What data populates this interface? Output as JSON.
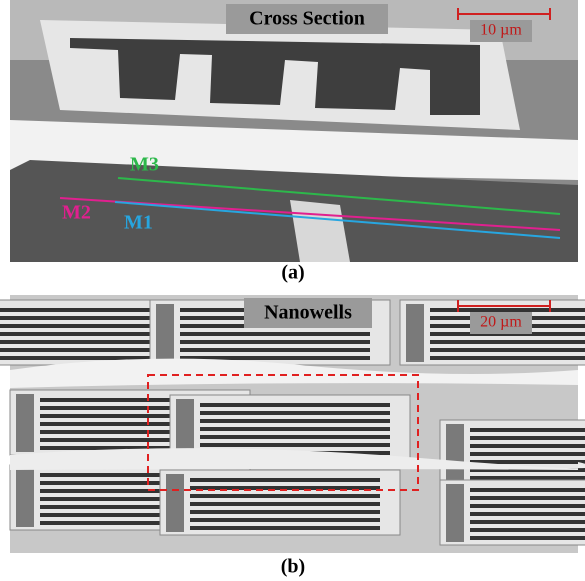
{
  "panels": [
    {
      "title": "Cross Section",
      "scale_bar": "10 µm",
      "layers": [
        "M3",
        "M2",
        "M1"
      ],
      "caption": "(a)"
    },
    {
      "title": "Nanowells",
      "scale_bar": "20 µm",
      "caption": "(b)"
    }
  ]
}
